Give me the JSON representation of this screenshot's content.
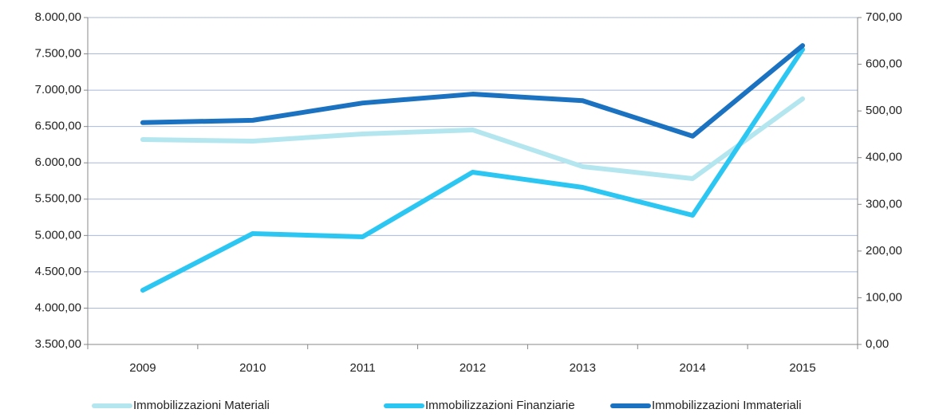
{
  "chart_data": {
    "type": "line",
    "categories": [
      "2009",
      "2010",
      "2011",
      "2012",
      "2013",
      "2014",
      "2015"
    ],
    "series": [
      {
        "name": "Immobilizzazioni Materiali",
        "color": "#b4e6f0",
        "values": [
          6321,
          6299,
          6398,
          6453,
          5948,
          5783,
          6881
        ]
      },
      {
        "name": "Immobilizzazioni Finanziarie",
        "color": "#2cc6f2",
        "values": [
          4246,
          5026,
          4982,
          5871,
          5662,
          5278,
          7561
        ]
      },
      {
        "name": "Immobilizzazioni Immateriali",
        "color": "#1b72c0",
        "axis": "y2",
        "values": [
          475,
          480,
          517,
          536,
          522,
          446,
          640
        ]
      }
    ],
    "ylim": [
      3500,
      8000
    ],
    "yticks": [
      {
        "value": 3500,
        "label": "3.500,00"
      },
      {
        "value": 4000,
        "label": "4.000,00"
      },
      {
        "value": 4500,
        "label": "4.500,00"
      },
      {
        "value": 5000,
        "label": "5.000,00"
      },
      {
        "value": 5500,
        "label": "5.500,00"
      },
      {
        "value": 6000,
        "label": "6.000,00"
      },
      {
        "value": 6500,
        "label": "6.500,00"
      },
      {
        "value": 7000,
        "label": "7.000,00"
      },
      {
        "value": 7500,
        "label": "7.500,00"
      },
      {
        "value": 8000,
        "label": "8.000,00"
      }
    ],
    "y2lim": [
      0,
      700
    ],
    "y2ticks": [
      {
        "value": 0,
        "label": "0,00"
      },
      {
        "value": 100,
        "label": "100,00"
      },
      {
        "value": 200,
        "label": "200,00"
      },
      {
        "value": 300,
        "label": "300,00"
      },
      {
        "value": 400,
        "label": "400,00"
      },
      {
        "value": 500,
        "label": "500,00"
      },
      {
        "value": 600,
        "label": "600,00"
      },
      {
        "value": 700,
        "label": "700,00"
      }
    ],
    "grid": true,
    "legend": "bottom"
  }
}
